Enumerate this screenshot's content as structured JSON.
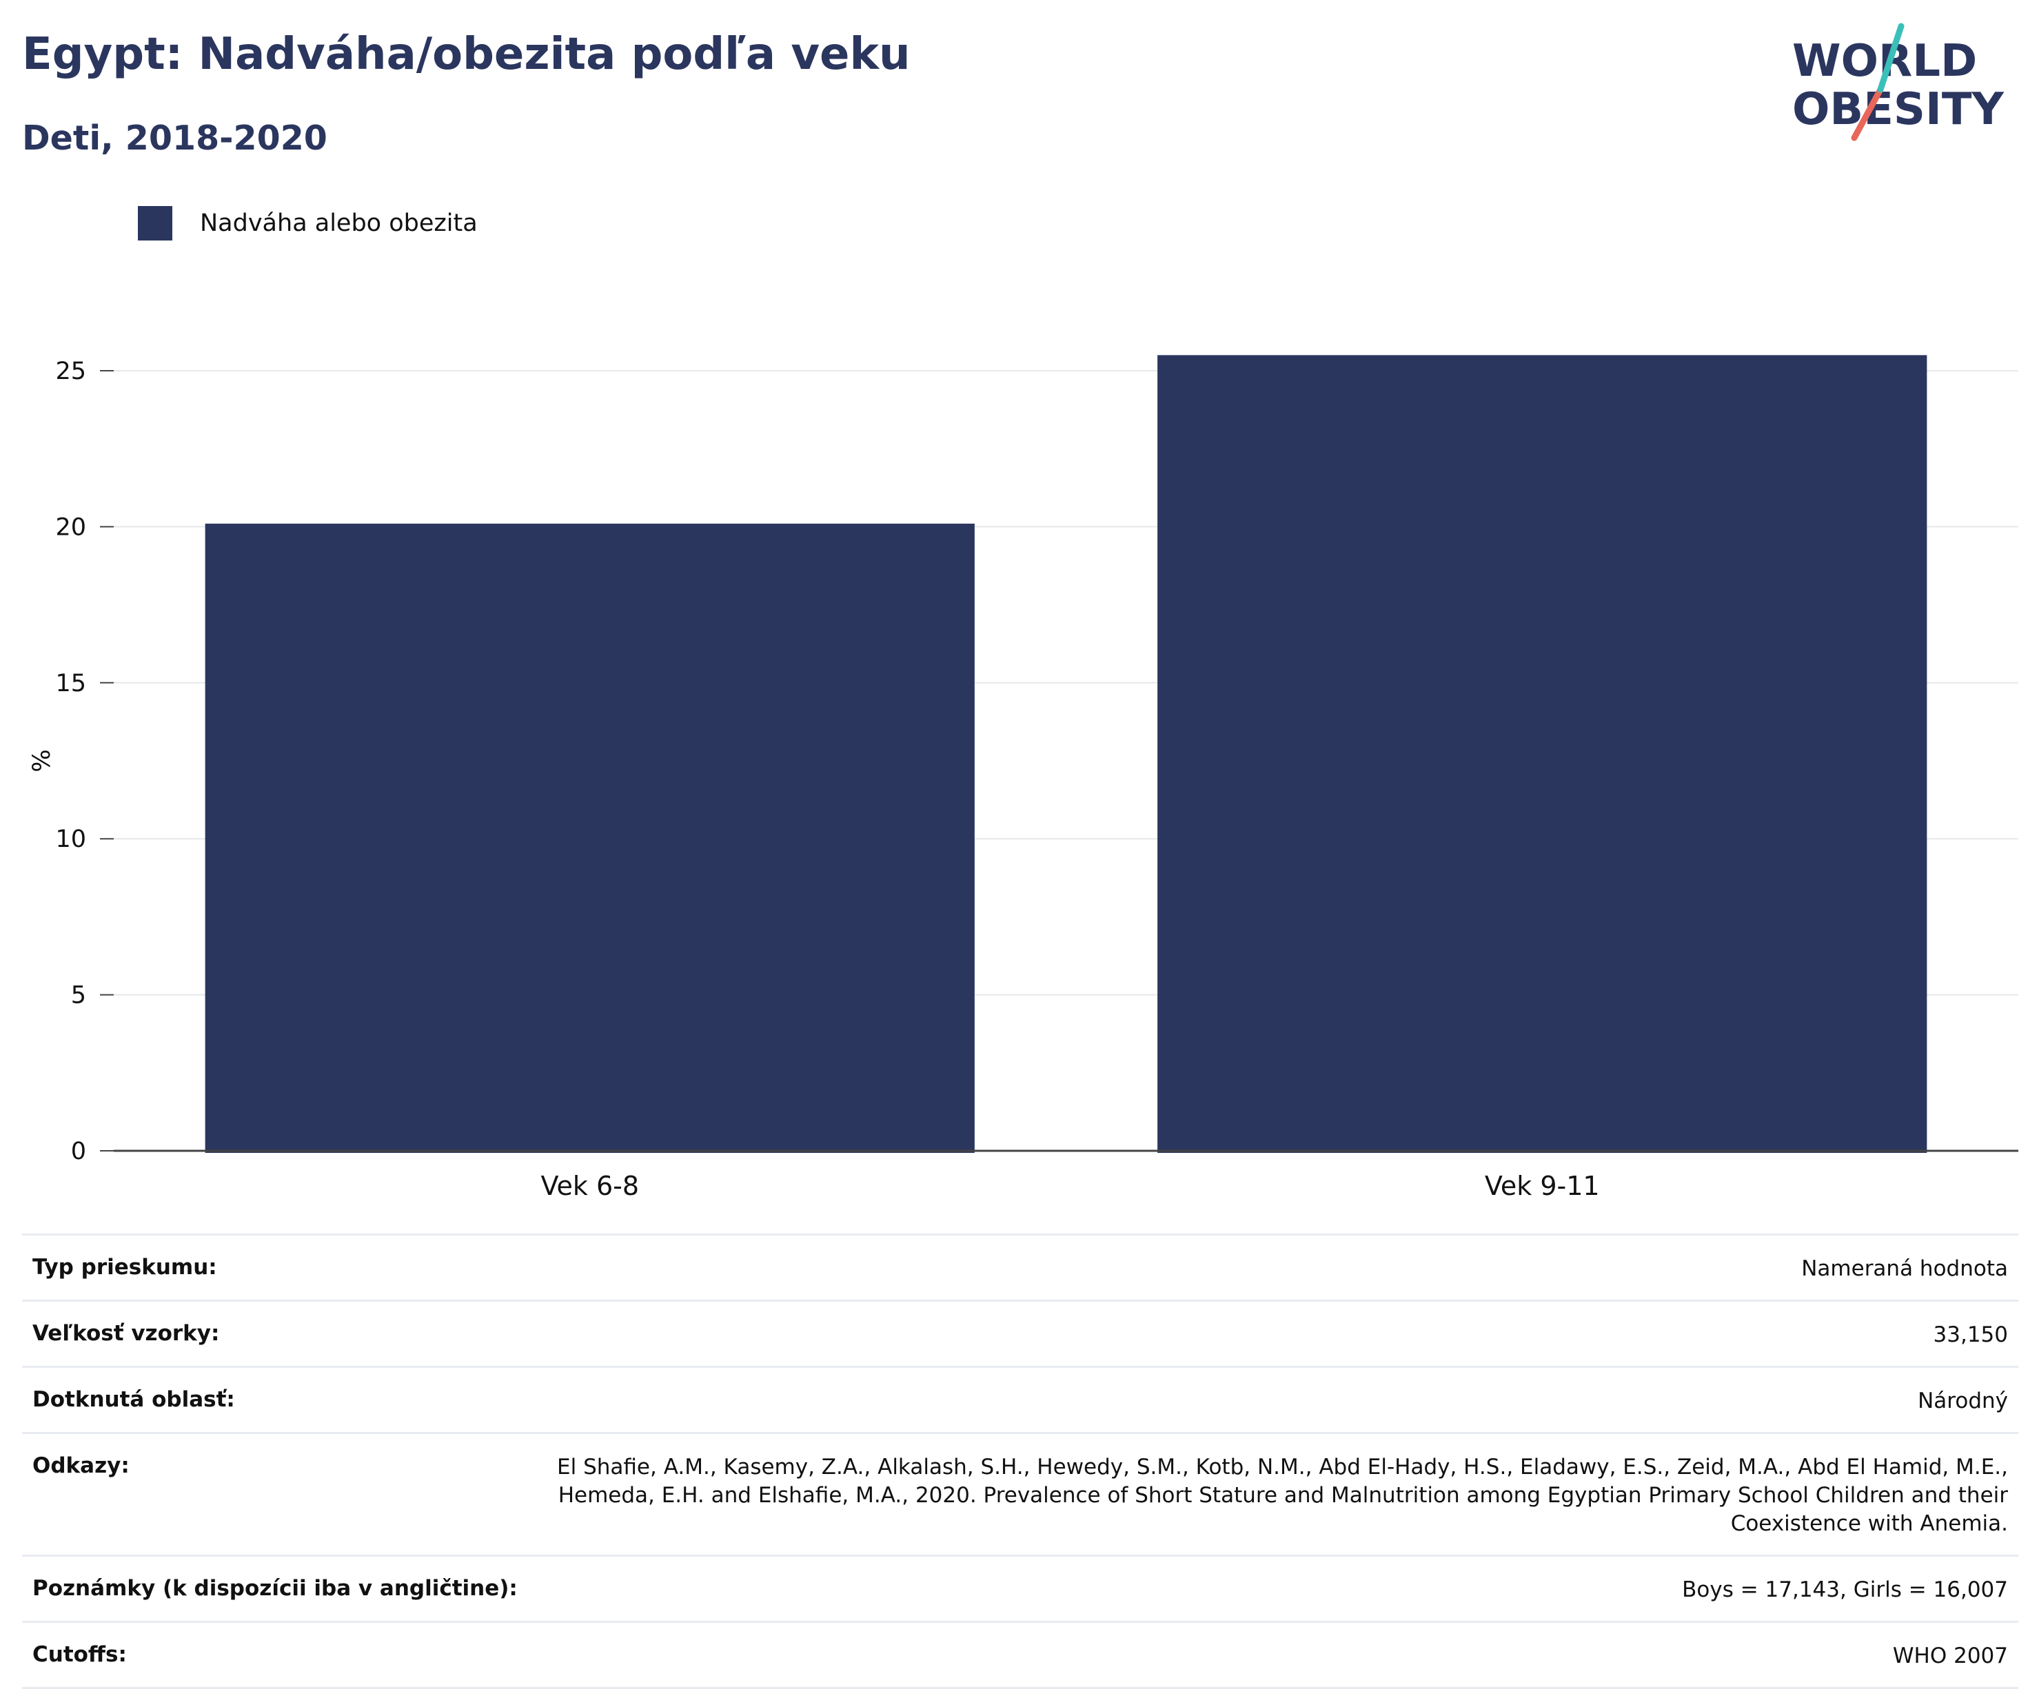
{
  "header": {
    "title": "Egypt: Nadváha/obezita podľa veku",
    "subtitle": "Deti, 2018-2020"
  },
  "logo": {
    "line1": "WORLD",
    "line2": "OBESITY",
    "colors": {
      "text": "#2b365f",
      "teal": "#3bbfb9",
      "coral": "#e8675a"
    }
  },
  "legend": {
    "label": "Nadváha alebo obezita",
    "color": "#2b365f"
  },
  "chart_data": {
    "type": "bar",
    "categories": [
      "Vek 6-8",
      "Vek 9-11"
    ],
    "series": [
      {
        "name": "Nadváha alebo obezita",
        "values": [
          20.1,
          25.5
        ],
        "color": "#2b365f"
      }
    ],
    "title": "Egypt: Nadváha/obezita podľa veku",
    "subtitle": "Deti, 2018-2020",
    "xlabel": "",
    "ylabel": "%",
    "ylim": [
      0,
      27
    ],
    "yticks": [
      0,
      5,
      10,
      15,
      20,
      25
    ],
    "grid": true,
    "legend_position": "top-left"
  },
  "info_table": [
    {
      "key": "Typ prieskumu:",
      "value": "Nameraná hodnota"
    },
    {
      "key": "Veľkosť vzorky:",
      "value": "33,150"
    },
    {
      "key": "Dotknutá oblasť:",
      "value": "Národný"
    },
    {
      "key": "Odkazy:",
      "value": "El Shafie, A.M., Kasemy, Z.A., Alkalash, S.H., Hewedy, S.M., Kotb, N.M., Abd El-Hady, H.S., Eladawy, E.S., Zeid, M.A., Abd El Hamid, M.E., Hemeda, E.H. and Elshafie, M.A., 2020. Prevalence of Short Stature and Malnutrition among Egyptian Primary School Children and their Coexistence with Anemia."
    },
    {
      "key": "Poznámky (k dispozícii iba v angličtine):",
      "value": "Boys = 17,143, Girls = 16,007"
    },
    {
      "key": "Cutoffs:",
      "value": "WHO 2007"
    }
  ]
}
